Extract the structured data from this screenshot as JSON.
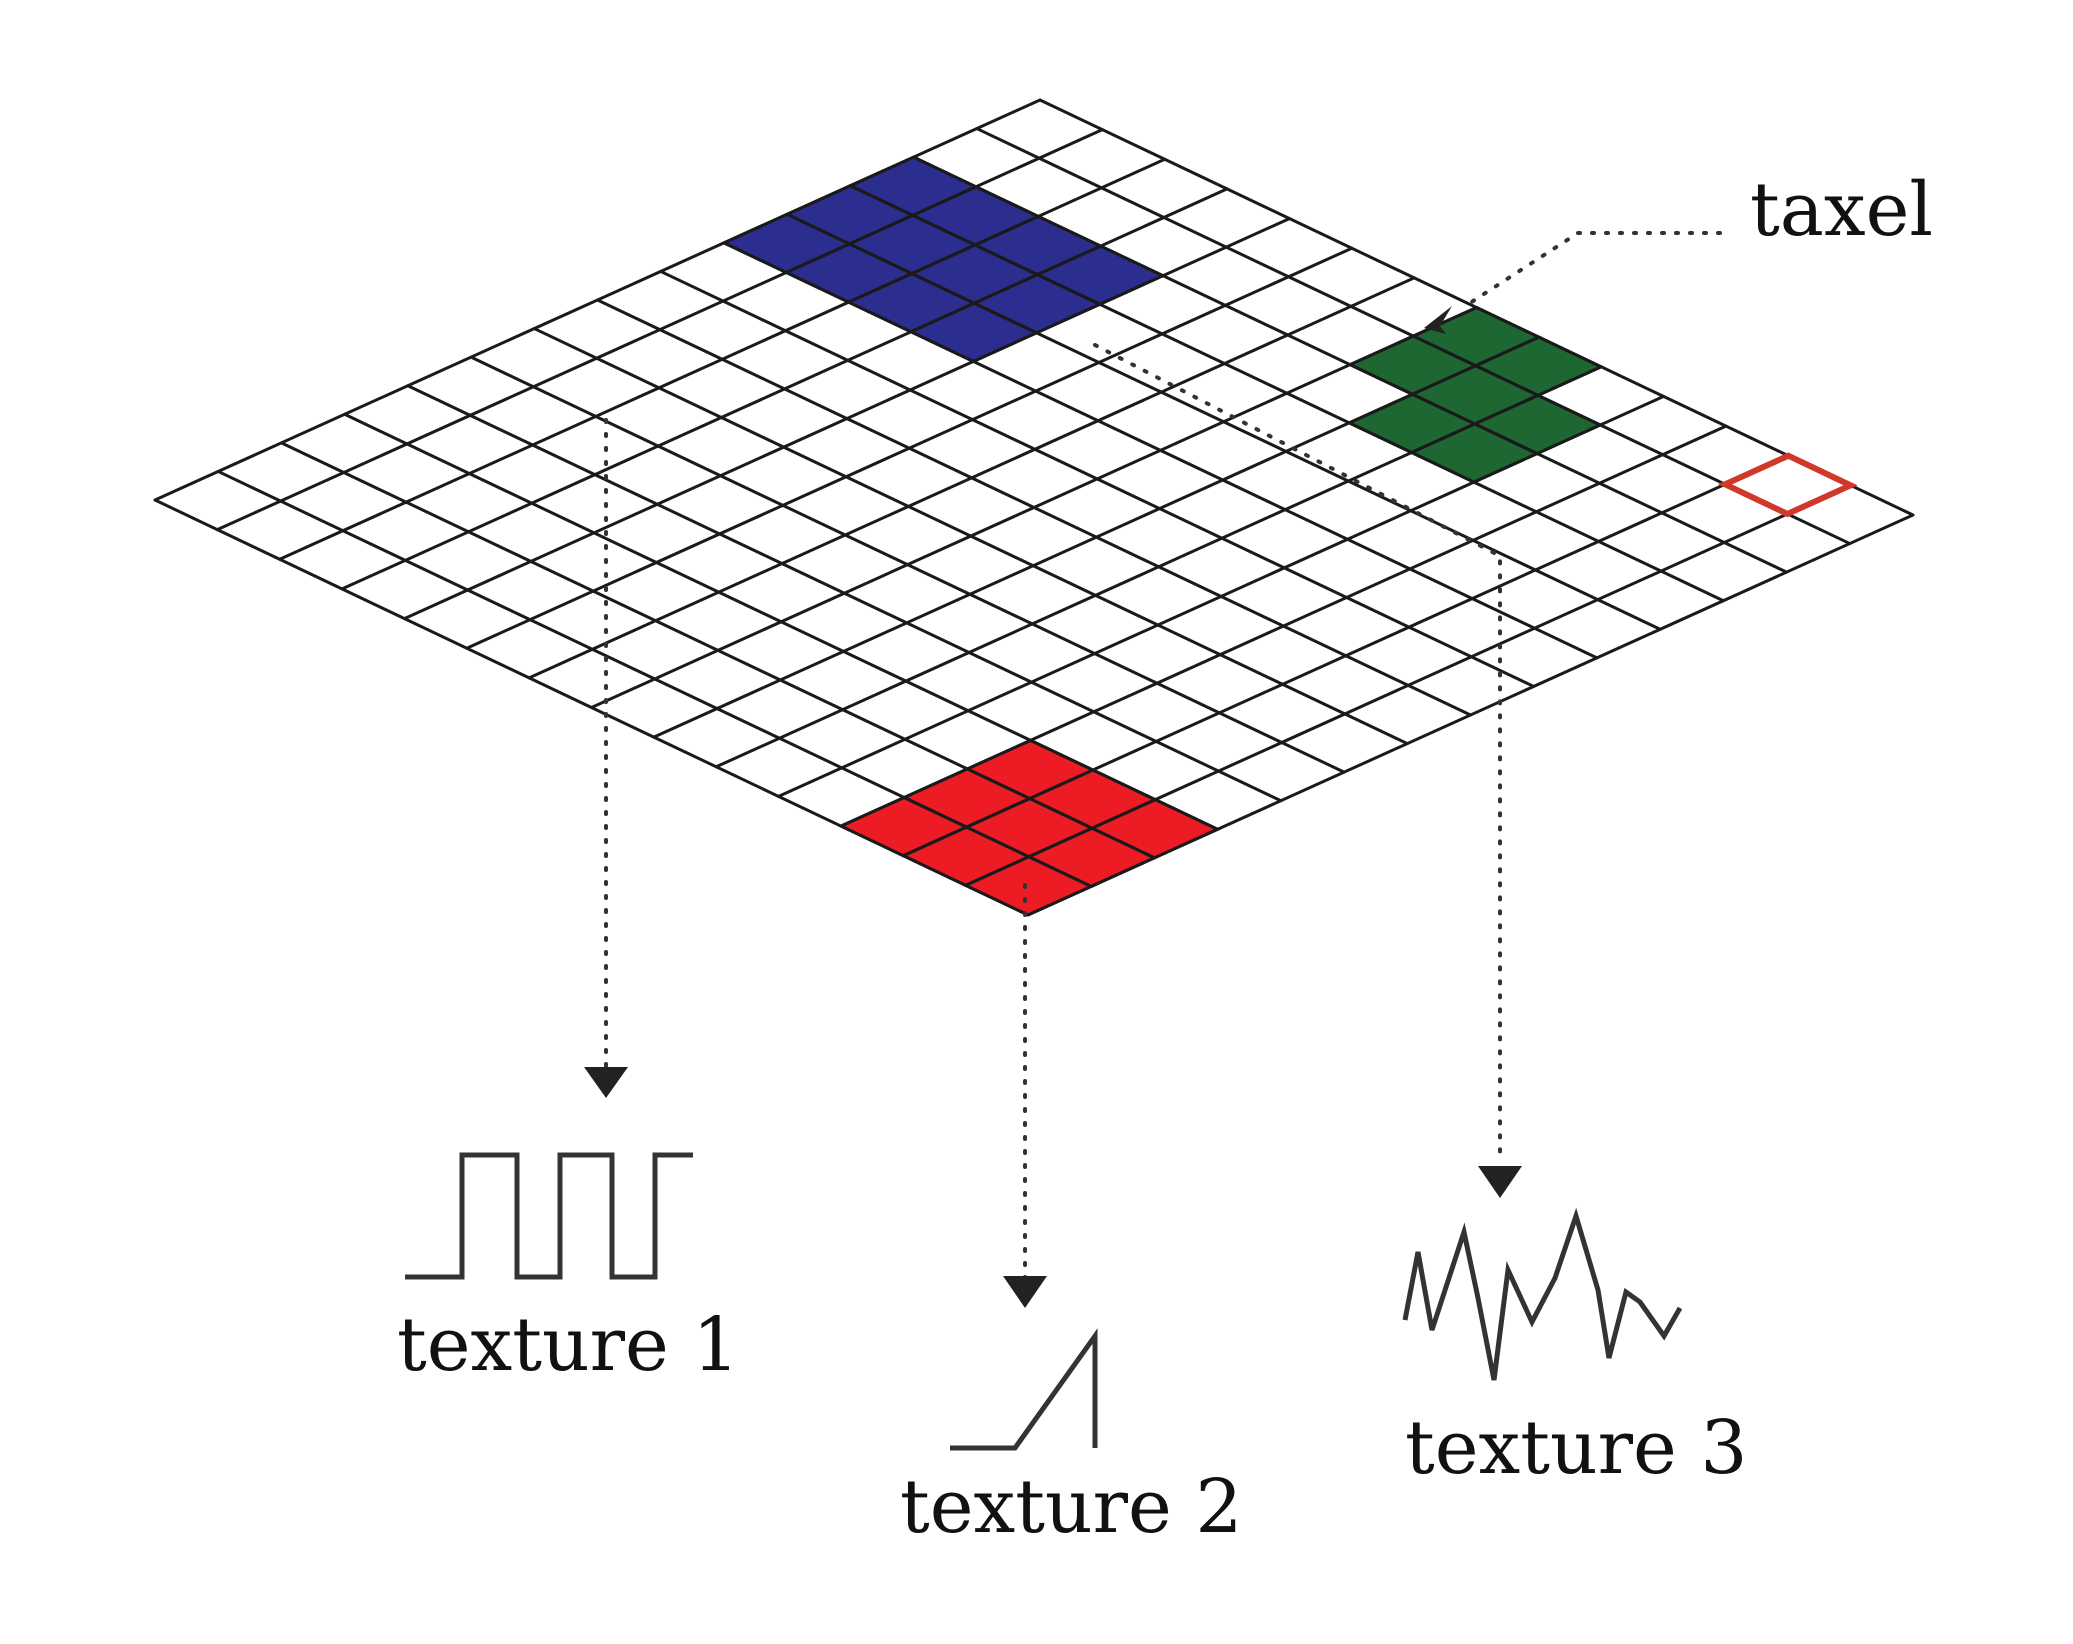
{
  "labels": {
    "taxel": "taxel",
    "texture1": "texture 1",
    "texture2": "texture 2",
    "texture3": "texture 3"
  },
  "colors": {
    "grid": "#1a1a1a",
    "blue_region": "#2b2e8e",
    "green_region": "#1e6632",
    "red_region": "#ed1c24",
    "taxel_outline": "#d0392a",
    "dotted_line": "#333333"
  },
  "grid": {
    "cells_per_side": 14
  },
  "regions": [
    {
      "name": "blue",
      "color_key": "blue_region",
      "cells": [
        [
          2,
          0
        ],
        [
          2,
          1
        ],
        [
          2,
          2
        ],
        [
          2,
          3
        ],
        [
          3,
          0
        ],
        [
          3,
          1
        ],
        [
          3,
          2
        ],
        [
          3,
          3
        ],
        [
          4,
          0
        ],
        [
          4,
          1
        ],
        [
          4,
          2
        ],
        [
          4,
          3
        ]
      ]
    },
    {
      "name": "green",
      "color_key": "green_region",
      "cells": [
        [
          0,
          7
        ],
        [
          0,
          8
        ],
        [
          1,
          7
        ],
        [
          1,
          8
        ],
        [
          1,
          9
        ],
        [
          2,
          8
        ],
        [
          2,
          9
        ]
      ]
    },
    {
      "name": "red",
      "color_key": "red_region",
      "cells": [
        [
          11,
          11
        ],
        [
          11,
          12
        ],
        [
          11,
          13
        ],
        [
          12,
          11
        ],
        [
          12,
          12
        ],
        [
          12,
          13
        ],
        [
          13,
          11
        ],
        [
          13,
          12
        ],
        [
          13,
          13
        ]
      ]
    },
    {
      "name": "taxel",
      "color_key": "taxel_outline",
      "cells": [
        [
          0,
          12
        ]
      ],
      "outline_only": true
    }
  ]
}
